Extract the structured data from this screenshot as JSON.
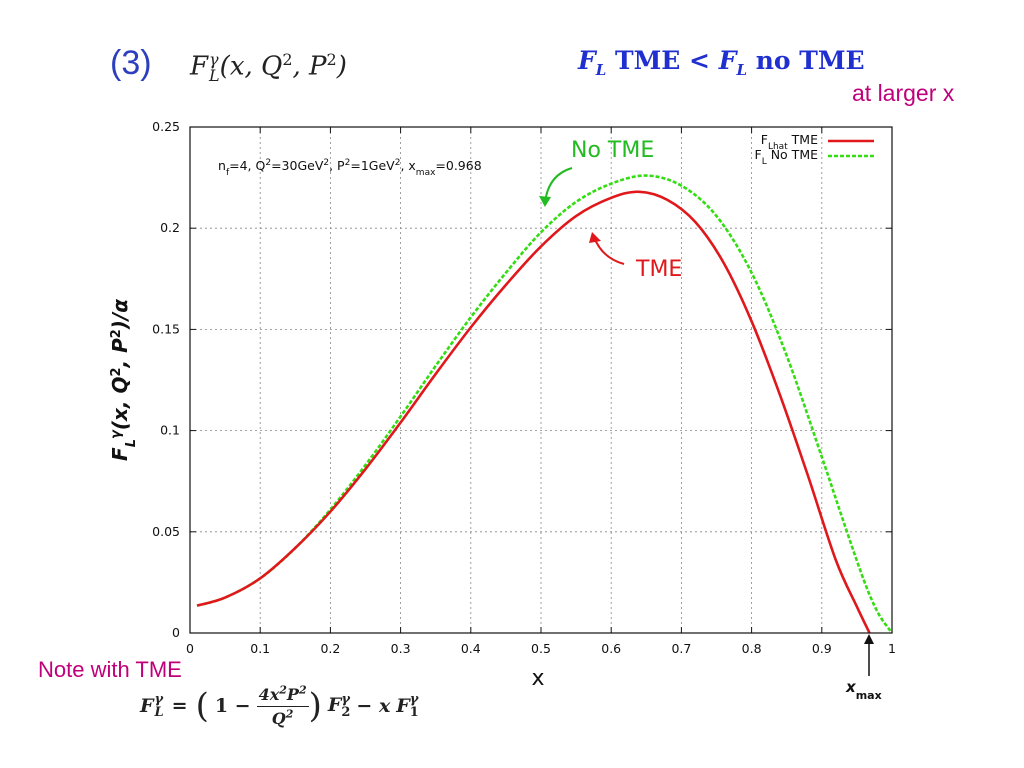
{
  "slide": {
    "number": "(3)",
    "formula": "F_L^γ(x, Q², P²)",
    "headline": "F_L TME < F_L no TME",
    "subline": "at larger x",
    "note_label": "Note with TME",
    "note_formula": "F_L^γ = (1 − 4x²P²/Q²) F₂^γ − x F₁^γ"
  },
  "chart_data": {
    "type": "line",
    "xlabel": "x",
    "ylabel": "F_L^γ(x, Q², P²)/α",
    "xlim": [
      0,
      1
    ],
    "ylim": [
      0,
      0.25
    ],
    "xticks": [
      "0",
      "0.1",
      "0.2",
      "0.3",
      "0.4",
      "0.5",
      "0.6",
      "0.7",
      "0.8",
      "0.9",
      "1"
    ],
    "yticks": [
      "0",
      "0.05",
      "0.1",
      "0.15",
      "0.2",
      "0.25"
    ],
    "grid": true,
    "legend_position": "top-right",
    "parameter_text": "n_f=4, Q²=30GeV², P²=1GeV², x_max=0.968",
    "x_max_marker": {
      "label": "x_max",
      "value": 0.968
    },
    "series": [
      {
        "name": "F_Lhat TME",
        "color": "#e0181b",
        "style": "solid",
        "x": [
          0.01,
          0.05,
          0.1,
          0.15,
          0.2,
          0.25,
          0.3,
          0.35,
          0.4,
          0.45,
          0.5,
          0.55,
          0.6,
          0.64,
          0.68,
          0.72,
          0.76,
          0.8,
          0.84,
          0.88,
          0.92,
          0.95,
          0.968
        ],
        "y": [
          0.0135,
          0.0175,
          0.027,
          0.042,
          0.06,
          0.081,
          0.104,
          0.128,
          0.151,
          0.172,
          0.191,
          0.206,
          0.215,
          0.218,
          0.214,
          0.203,
          0.183,
          0.154,
          0.118,
          0.078,
          0.036,
          0.013,
          0.0
        ]
      },
      {
        "name": "F_L No TME",
        "color": "#33dd11",
        "style": "dashed",
        "x": [
          0.01,
          0.05,
          0.1,
          0.15,
          0.2,
          0.25,
          0.3,
          0.35,
          0.4,
          0.45,
          0.5,
          0.55,
          0.6,
          0.65,
          0.7,
          0.75,
          0.8,
          0.85,
          0.9,
          0.93,
          0.96,
          0.98,
          1.0
        ],
        "y": [
          0.0135,
          0.0175,
          0.027,
          0.042,
          0.061,
          0.083,
          0.107,
          0.132,
          0.156,
          0.178,
          0.198,
          0.213,
          0.222,
          0.226,
          0.221,
          0.206,
          0.178,
          0.137,
          0.087,
          0.056,
          0.026,
          0.01,
          0.0
        ]
      }
    ],
    "annotations": [
      {
        "text": "No TME",
        "color": "#22bb22"
      },
      {
        "text": "TME",
        "color": "#e0181b"
      }
    ]
  }
}
